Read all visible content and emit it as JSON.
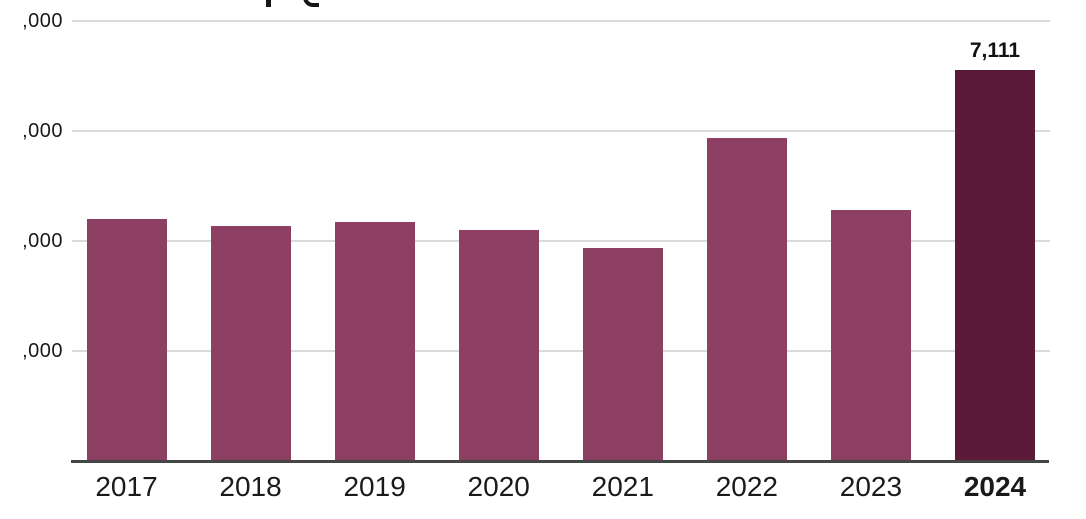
{
  "chart_data": {
    "type": "bar",
    "title": "",
    "categories": [
      "2017",
      "2018",
      "2019",
      "2020",
      "2021",
      "2022",
      "2023",
      "2024"
    ],
    "values": [
      4400,
      4270,
      4350,
      4200,
      3870,
      5870,
      4560,
      7111
    ],
    "highlighted_category": "2024",
    "value_label": {
      "category": "2024",
      "text": "7,111"
    },
    "xlabel": "",
    "ylabel": "",
    "ylim": [
      0,
      8400
    ],
    "y_tick_values": [
      2000,
      4000,
      6000,
      8000
    ],
    "y_tick_labels_visible": [
      ",000",
      ",000",
      ",000",
      ",000"
    ],
    "grid": true,
    "legend": false
  },
  "colors": {
    "bar": "#8c3e63",
    "bar_highlight": "#5c1a3a",
    "gridline": "#dadada",
    "axis_line": "#454545",
    "text": "#1a1a1a"
  }
}
